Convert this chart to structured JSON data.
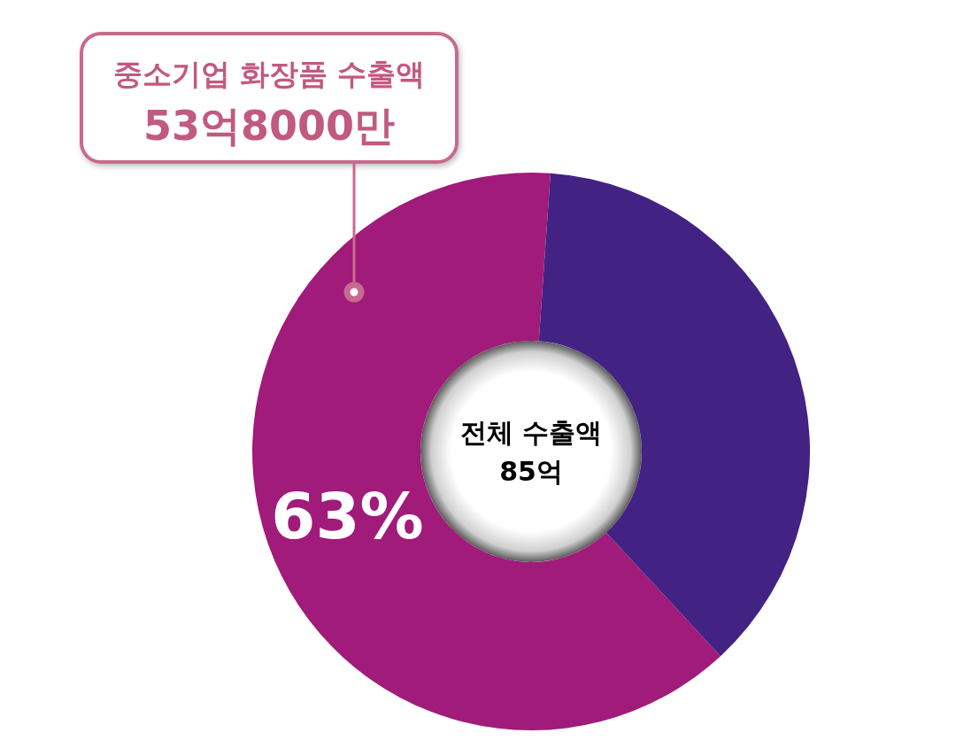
{
  "chart_data": {
    "type": "donut",
    "categories": [
      null,
      null
    ],
    "values": [
      63,
      37
    ],
    "colors": [
      "#a11b7a",
      "#422283"
    ],
    "value_labels": [
      "63%",
      null
    ],
    "annotations": [
      "중소기업 화장품 수출액",
      "53억8000만",
      "전체 수출액",
      "85억"
    ]
  }
}
